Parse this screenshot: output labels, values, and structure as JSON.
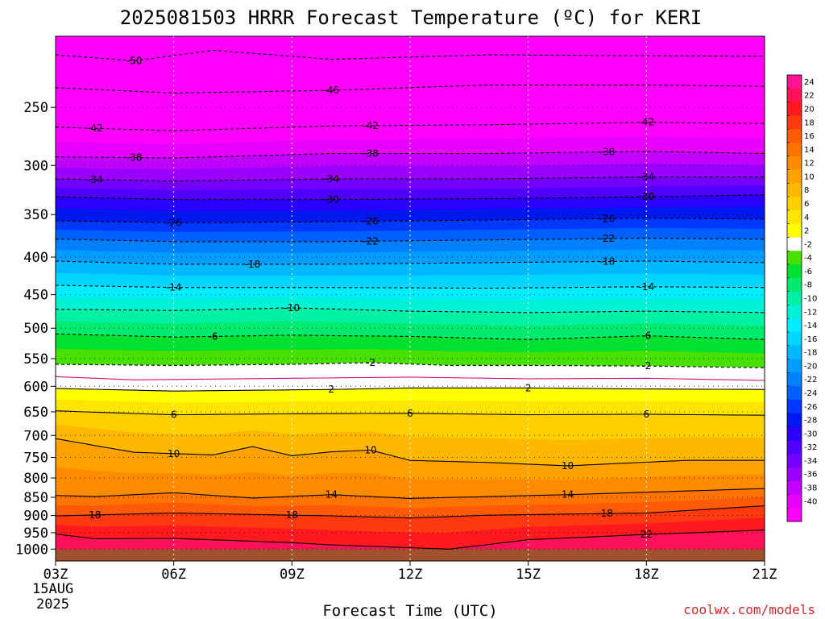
{
  "chart_data": {
    "type": "contour",
    "title": "2025081503 HRRR Forecast Temperature (ºC) for KERI",
    "xlabel": "Forecast Time (UTC)",
    "ylabel": "",
    "credit": "coolwx.com/models",
    "date_label": [
      "15AUG",
      "2025"
    ],
    "x_ticks": [
      "03Z",
      "06Z",
      "09Z",
      "12Z",
      "15Z",
      "18Z",
      "21Z"
    ],
    "x_hours": [
      3,
      6,
      9,
      12,
      15,
      18,
      21
    ],
    "xlim": [
      3,
      21
    ],
    "y_ticks": [
      250,
      300,
      350,
      400,
      450,
      500,
      550,
      600,
      650,
      700,
      750,
      800,
      850,
      900,
      950,
      1000
    ],
    "ylim_hPa": [
      200,
      1038
    ],
    "y_scale": "log-pressure (top 200 hPa, bottom ~1038 hPa)",
    "grid": "dotted white vertical lines at each x tick, dotted black horizontal lines at each y tick",
    "ground_color": "#a0522d",
    "ground_top_hPa": 1000,
    "colorbar": {
      "labels": [
        24,
        22,
        20,
        18,
        16,
        14,
        12,
        10,
        8,
        6,
        4,
        2,
        -2,
        -4,
        -6,
        -8,
        -10,
        -12,
        -14,
        -16,
        -18,
        -20,
        -22,
        -24,
        -26,
        -28,
        -30,
        -32,
        -34,
        -36,
        -38,
        -40
      ],
      "colors": [
        "#ff1493",
        "#ff1258",
        "#ff1a20",
        "#ff3a10",
        "#ff5a08",
        "#ff7400",
        "#ff8c00",
        "#ffa200",
        "#ffb800",
        "#ffd000",
        "#ffe600",
        "#ffff00",
        "#ffffff",
        "#47e000",
        "#00e030",
        "#00ea70",
        "#00f0a4",
        "#00f2d4",
        "#00ecff",
        "#00d4ff",
        "#00b8ff",
        "#009cff",
        "#0080ff",
        "#0060ff",
        "#0038ff",
        "#0018f0",
        "#2a00ff",
        "#5000ff",
        "#7400ff",
        "#9a00ff",
        "#c200ff",
        "#e800ff",
        "#ff00ff"
      ]
    },
    "isotherms": [
      {
        "value": -50,
        "dash": true,
        "points": [
          [
            3,
            212
          ],
          [
            5,
            216
          ],
          [
            7,
            209
          ],
          [
            10,
            215
          ],
          [
            14,
            212
          ],
          [
            21,
            213
          ]
        ],
        "labels": [
          [
            5,
            -50
          ]
        ]
      },
      {
        "value": -46,
        "dash": true,
        "points": [
          [
            3,
            235
          ],
          [
            6,
            239
          ],
          [
            10,
            237
          ],
          [
            14,
            233
          ],
          [
            18,
            233
          ],
          [
            21,
            234
          ]
        ],
        "labels": [
          [
            10,
            -46
          ]
        ]
      },
      {
        "value": -42,
        "dash": true,
        "points": [
          [
            3,
            266
          ],
          [
            6,
            269
          ],
          [
            10,
            265
          ],
          [
            14,
            264
          ],
          [
            18,
            262
          ],
          [
            21,
            263
          ]
        ],
        "labels": [
          [
            4,
            -42
          ],
          [
            11,
            -42
          ],
          [
            18,
            -42
          ]
        ]
      },
      {
        "value": -38,
        "dash": true,
        "points": [
          [
            3,
            292
          ],
          [
            6,
            293
          ],
          [
            10,
            289
          ],
          [
            14,
            289
          ],
          [
            18,
            287
          ],
          [
            21,
            289
          ]
        ],
        "labels": [
          [
            5,
            -38
          ],
          [
            11,
            -38
          ],
          [
            17,
            -38
          ]
        ]
      },
      {
        "value": -34,
        "dash": true,
        "points": [
          [
            3,
            313
          ],
          [
            6,
            315
          ],
          [
            10,
            313
          ],
          [
            14,
            313
          ],
          [
            18,
            311
          ],
          [
            21,
            311
          ]
        ],
        "labels": [
          [
            4,
            -34
          ],
          [
            10,
            -34
          ],
          [
            18,
            -34
          ]
        ]
      },
      {
        "value": -30,
        "dash": true,
        "points": [
          [
            3,
            331
          ],
          [
            6,
            334
          ],
          [
            10,
            334
          ],
          [
            14,
            333
          ],
          [
            18,
            331
          ],
          [
            21,
            329
          ]
        ],
        "labels": [
          [
            10,
            -30
          ],
          [
            18,
            -30
          ]
        ]
      },
      {
        "value": -26,
        "dash": true,
        "points": [
          [
            3,
            357
          ],
          [
            6,
            359
          ],
          [
            10,
            358
          ],
          [
            14,
            356
          ],
          [
            18,
            354
          ],
          [
            21,
            355
          ]
        ],
        "labels": [
          [
            6,
            -26
          ],
          [
            11,
            -26
          ],
          [
            17,
            -26
          ]
        ]
      },
      {
        "value": -22,
        "dash": true,
        "points": [
          [
            3,
            378
          ],
          [
            6,
            381
          ],
          [
            10,
            381
          ],
          [
            14,
            379
          ],
          [
            18,
            377
          ],
          [
            21,
            378
          ]
        ],
        "labels": [
          [
            11,
            -22
          ],
          [
            17,
            -22
          ]
        ]
      },
      {
        "value": -18,
        "dash": true,
        "points": [
          [
            3,
            405
          ],
          [
            6,
            409
          ],
          [
            10,
            409
          ],
          [
            14,
            407
          ],
          [
            18,
            405
          ],
          [
            21,
            407
          ]
        ],
        "labels": [
          [
            8,
            -18
          ],
          [
            17,
            -18
          ]
        ]
      },
      {
        "value": -14,
        "dash": true,
        "points": [
          [
            3,
            437
          ],
          [
            6,
            440
          ],
          [
            10,
            440
          ],
          [
            14,
            441
          ],
          [
            18,
            439
          ],
          [
            21,
            440
          ]
        ],
        "labels": [
          [
            6,
            -14
          ],
          [
            18,
            -14
          ]
        ]
      },
      {
        "value": -10,
        "dash": true,
        "points": [
          [
            3,
            471
          ],
          [
            6,
            473
          ],
          [
            9,
            469
          ],
          [
            12,
            474
          ],
          [
            15,
            476
          ],
          [
            18,
            474
          ],
          [
            21,
            476
          ]
        ],
        "labels": [
          [
            9,
            -10
          ]
        ]
      },
      {
        "value": -6,
        "dash": true,
        "points": [
          [
            3,
            509
          ],
          [
            6,
            514
          ],
          [
            9,
            511
          ],
          [
            12,
            513
          ],
          [
            15,
            518
          ],
          [
            18,
            512
          ],
          [
            21,
            518
          ]
        ],
        "labels": [
          [
            7,
            -6
          ],
          [
            18,
            -6
          ]
        ]
      },
      {
        "value": -2,
        "dash": true,
        "points": [
          [
            3,
            560
          ],
          [
            6,
            562
          ],
          [
            9,
            560
          ],
          [
            11,
            557
          ],
          [
            13,
            562
          ],
          [
            15,
            562
          ],
          [
            18,
            563
          ],
          [
            21,
            566
          ]
        ],
        "labels": [
          [
            11,
            -2
          ],
          [
            18,
            -2
          ]
        ]
      },
      {
        "value": 0,
        "dash": false,
        "color": "#d0107a",
        "points": [
          [
            3,
            582
          ],
          [
            5,
            588
          ],
          [
            9,
            585
          ],
          [
            12,
            583
          ],
          [
            15,
            586
          ],
          [
            18,
            585
          ],
          [
            21,
            589
          ]
        ],
        "labels": []
      },
      {
        "value": 2,
        "dash": false,
        "points": [
          [
            3,
            604
          ],
          [
            6,
            609
          ],
          [
            10,
            606
          ],
          [
            12,
            603
          ],
          [
            15,
            603
          ],
          [
            18,
            605
          ],
          [
            21,
            606
          ]
        ],
        "labels": [
          [
            10,
            2
          ],
          [
            15,
            2
          ]
        ]
      },
      {
        "value": 6,
        "dash": false,
        "points": [
          [
            3,
            648
          ],
          [
            6,
            656
          ],
          [
            9,
            654
          ],
          [
            12,
            653
          ],
          [
            15,
            656
          ],
          [
            18,
            655
          ],
          [
            21,
            657
          ]
        ],
        "labels": [
          [
            6,
            6
          ],
          [
            12,
            6
          ],
          [
            18,
            6
          ]
        ]
      },
      {
        "value": 10,
        "dash": false,
        "points": [
          [
            3,
            707
          ],
          [
            5,
            738
          ],
          [
            7,
            744
          ],
          [
            8,
            725
          ],
          [
            9,
            746
          ],
          [
            10,
            737
          ],
          [
            11,
            733
          ],
          [
            12,
            757
          ],
          [
            14,
            762
          ],
          [
            16,
            770
          ],
          [
            19,
            757
          ],
          [
            21,
            757
          ]
        ],
        "labels": [
          [
            6,
            10
          ],
          [
            11,
            10
          ],
          [
            16,
            10
          ]
        ]
      },
      {
        "value": 14,
        "dash": false,
        "points": [
          [
            3,
            845
          ],
          [
            4,
            848
          ],
          [
            6,
            838
          ],
          [
            8,
            852
          ],
          [
            10,
            843
          ],
          [
            12,
            853
          ],
          [
            16,
            843
          ],
          [
            21,
            827
          ]
        ],
        "labels": [
          [
            10,
            14
          ],
          [
            16,
            14
          ]
        ]
      },
      {
        "value": 18,
        "dash": false,
        "points": [
          [
            3,
            901
          ],
          [
            6,
            893
          ],
          [
            10,
            901
          ],
          [
            12,
            907
          ],
          [
            14,
            899
          ],
          [
            18,
            893
          ],
          [
            21,
            873
          ]
        ],
        "labels": [
          [
            4,
            18
          ],
          [
            9,
            18
          ],
          [
            17,
            18
          ]
        ]
      },
      {
        "value": 22,
        "dash": false,
        "points": [
          [
            3,
            954
          ],
          [
            4,
            968
          ],
          [
            6,
            967
          ],
          [
            9,
            980
          ],
          [
            10,
            987
          ],
          [
            13,
            1000
          ],
          [
            15,
            971
          ],
          [
            18,
            955
          ],
          [
            21,
            942
          ]
        ],
        "labels": [
          [
            18,
            22
          ]
        ]
      }
    ]
  }
}
